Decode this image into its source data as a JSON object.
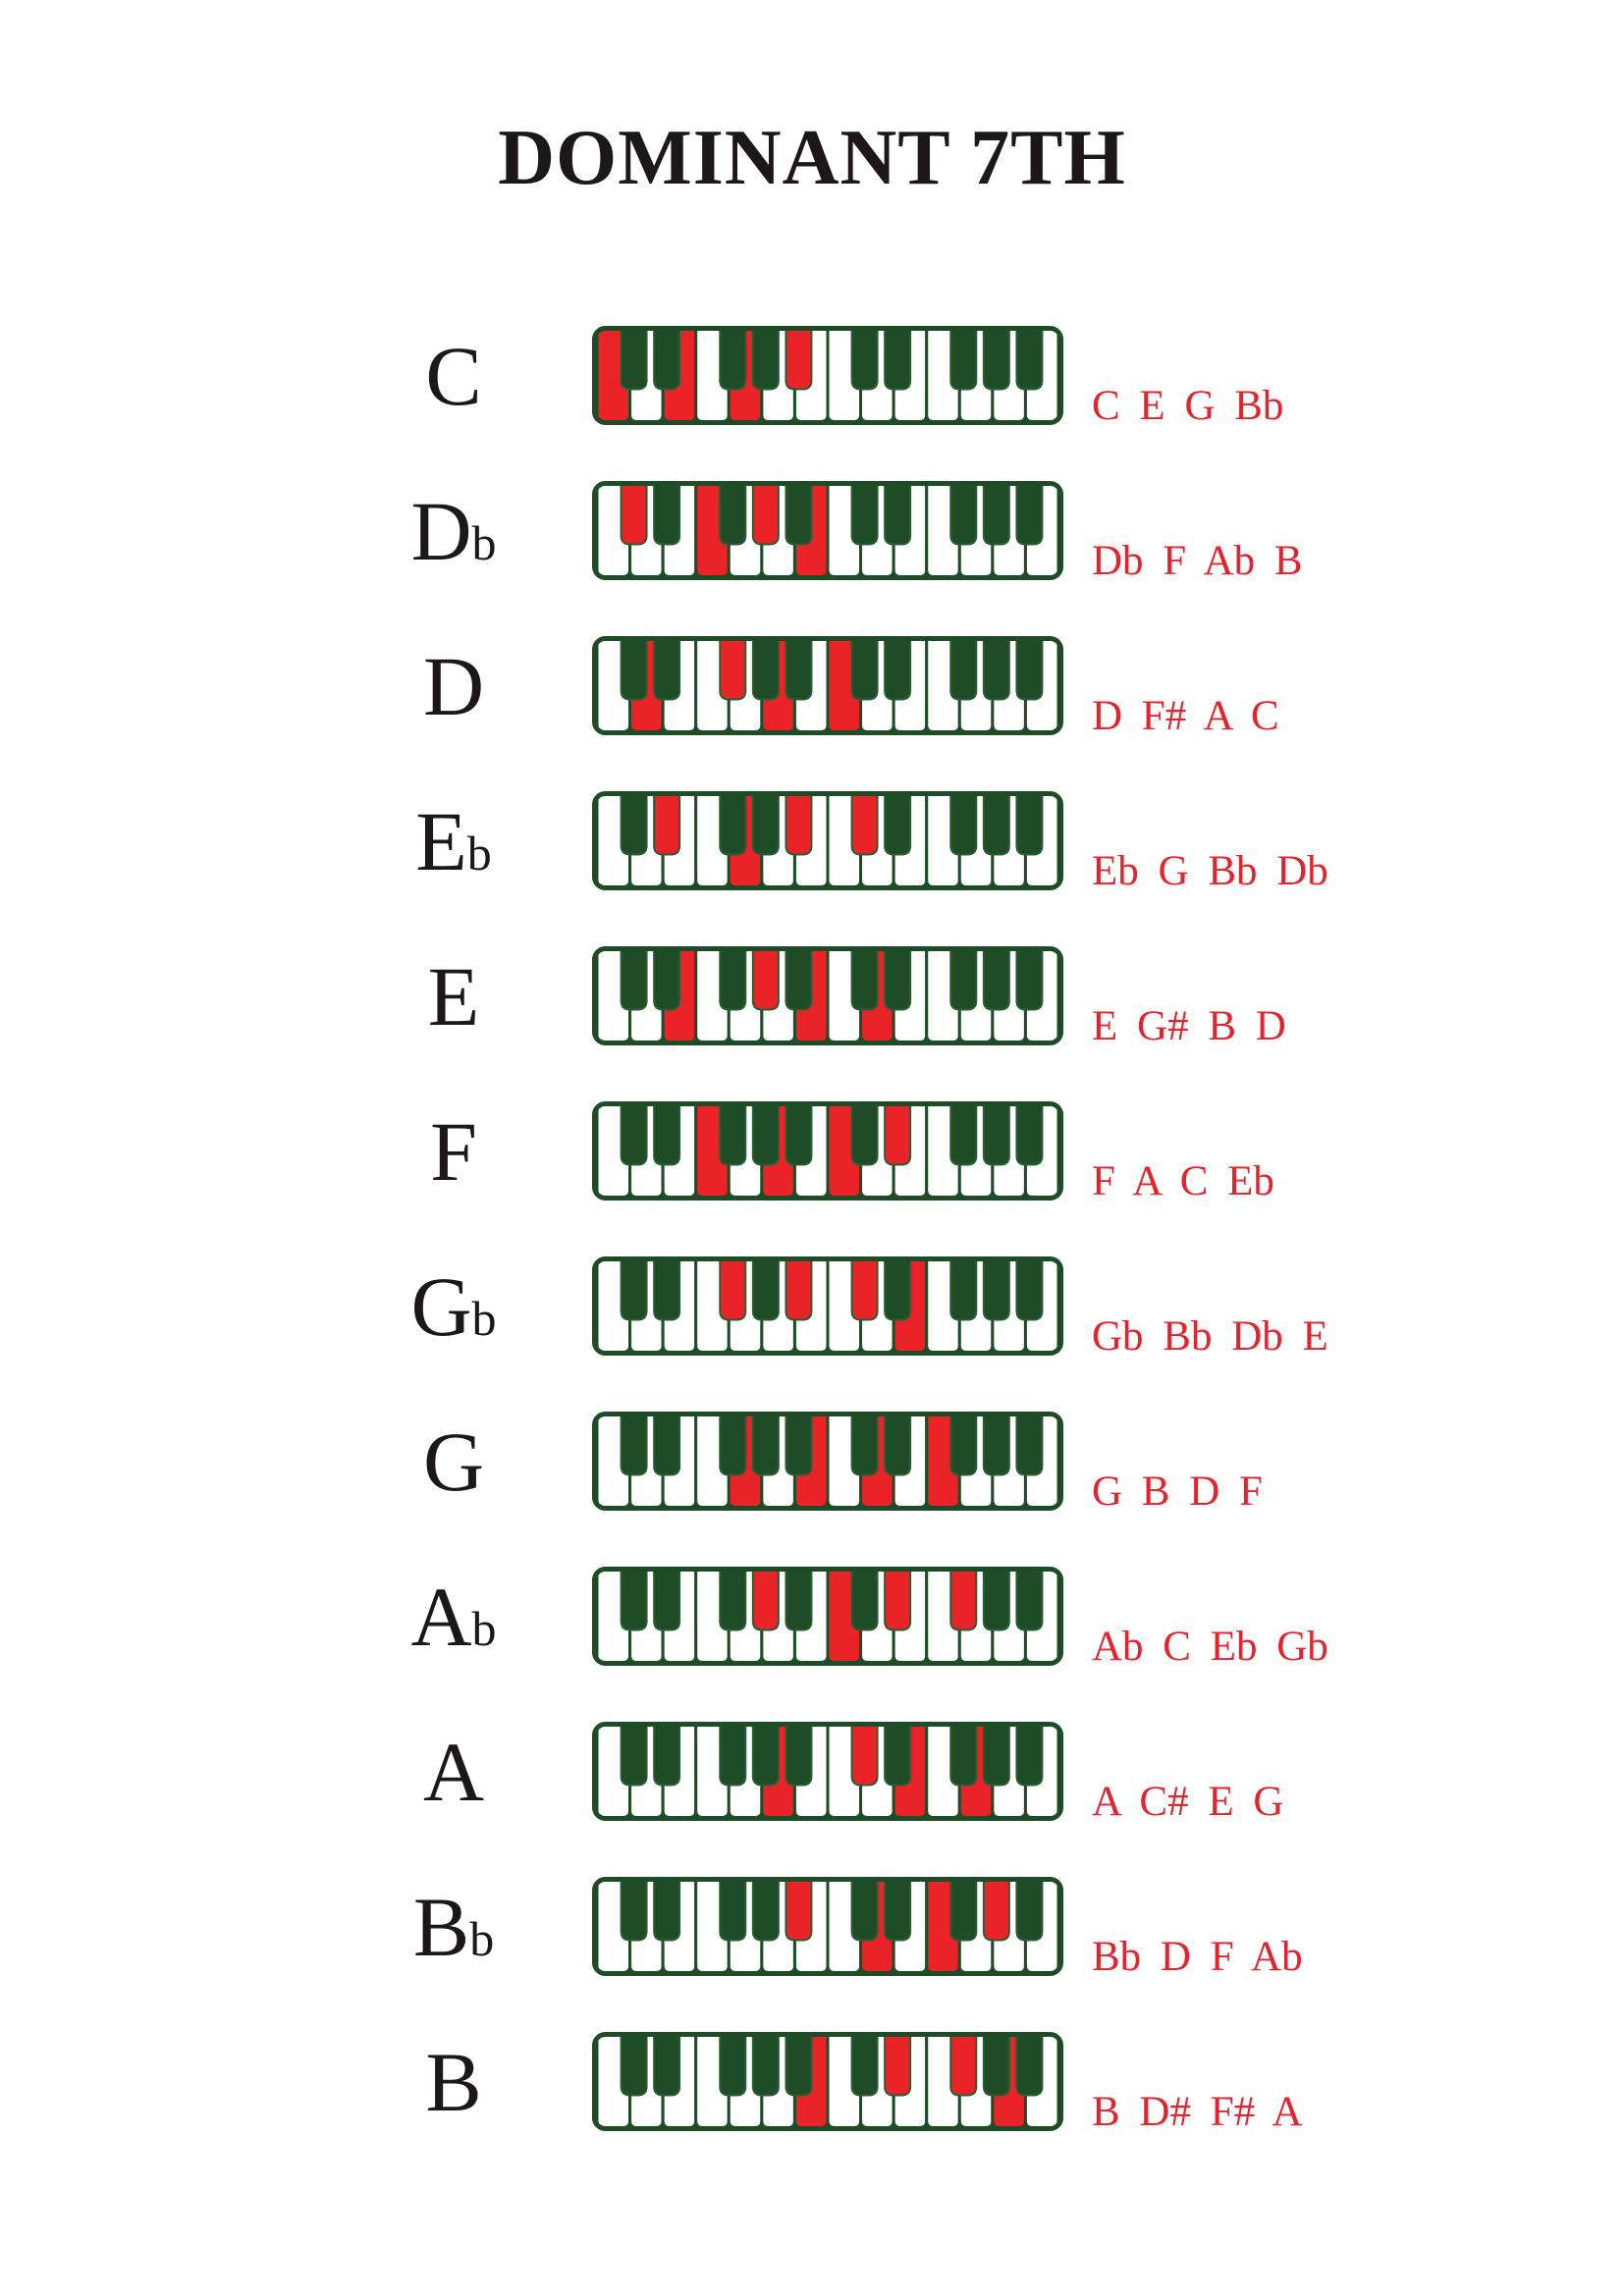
{
  "title": "DOMINANT 7TH",
  "colors": {
    "key_dark_green": "#1e4c27",
    "key_highlight_red": "#ea2329",
    "note_text_red": "#e3242e",
    "label_black": "#1c181a",
    "white_key": "#ffffff"
  },
  "keyboard": {
    "white_key_count": 14,
    "black_key_count": 10,
    "octaves": 2
  },
  "rows": [
    {
      "label_main": "C",
      "label_flat": "",
      "notes": "C E G Bb",
      "highlighted_white_keys": [
        0,
        2,
        4
      ],
      "highlighted_black_keys": [
        4
      ]
    },
    {
      "label_main": "D",
      "label_flat": "b",
      "notes": "Db F Ab B",
      "highlighted_white_keys": [
        3,
        6
      ],
      "highlighted_black_keys": [
        0,
        3
      ]
    },
    {
      "label_main": "D",
      "label_flat": "",
      "notes": "D F# A C",
      "highlighted_white_keys": [
        1,
        5,
        7
      ],
      "highlighted_black_keys": [
        2
      ]
    },
    {
      "label_main": "E",
      "label_flat": "b",
      "notes": "Eb G Bb Db",
      "highlighted_white_keys": [
        4
      ],
      "highlighted_black_keys": [
        1,
        4,
        5
      ]
    },
    {
      "label_main": "E",
      "label_flat": "",
      "notes": "E G# B D",
      "highlighted_white_keys": [
        2,
        6,
        8
      ],
      "highlighted_black_keys": [
        3
      ]
    },
    {
      "label_main": "F",
      "label_flat": "",
      "notes": "F A C Eb",
      "highlighted_white_keys": [
        3,
        5,
        7
      ],
      "highlighted_black_keys": [
        6
      ]
    },
    {
      "label_main": "G",
      "label_flat": "b",
      "notes": "Gb Bb Db E",
      "highlighted_white_keys": [
        9
      ],
      "highlighted_black_keys": [
        2,
        4,
        5
      ]
    },
    {
      "label_main": "G",
      "label_flat": "",
      "notes": "G B D F",
      "highlighted_white_keys": [
        4,
        6,
        8,
        10
      ],
      "highlighted_black_keys": []
    },
    {
      "label_main": "A",
      "label_flat": "b",
      "notes": "Ab C Eb Gb",
      "highlighted_white_keys": [
        7
      ],
      "highlighted_black_keys": [
        3,
        6,
        7
      ]
    },
    {
      "label_main": "A",
      "label_flat": "",
      "notes": "A C# E G",
      "highlighted_white_keys": [
        5,
        9,
        11
      ],
      "highlighted_black_keys": [
        5
      ]
    },
    {
      "label_main": "B",
      "label_flat": "b",
      "notes": "Bb D F Ab",
      "highlighted_white_keys": [
        8,
        10
      ],
      "highlighted_black_keys": [
        4,
        8
      ]
    },
    {
      "label_main": "B",
      "label_flat": "",
      "notes": "B D# F# A",
      "highlighted_white_keys": [
        6,
        12
      ],
      "highlighted_black_keys": [
        6,
        7
      ]
    }
  ]
}
